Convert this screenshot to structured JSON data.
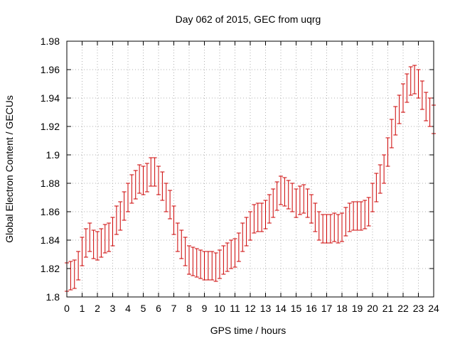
{
  "chart_data": {
    "type": "scatter",
    "title": "Day 062 of 2015, GEC from uqrg",
    "xlabel": "GPS time / hours",
    "ylabel": "Global Electron Content / GECUs",
    "xlim": [
      0,
      24
    ],
    "ylim": [
      1.8,
      1.98
    ],
    "xticks": [
      0,
      1,
      2,
      3,
      4,
      5,
      6,
      7,
      8,
      9,
      10,
      11,
      12,
      13,
      14,
      15,
      16,
      17,
      18,
      19,
      20,
      21,
      22,
      23,
      24
    ],
    "xtick_labels": [
      "0",
      "1",
      "2",
      "3",
      "4",
      "5",
      "6",
      "7",
      "8",
      "9",
      "10",
      "11",
      "12",
      "13",
      "14",
      "15",
      "16",
      "17",
      "18",
      "19",
      "20",
      "21",
      "22",
      "23",
      "24"
    ],
    "yticks": [
      1.8,
      1.82,
      1.84,
      1.86,
      1.88,
      1.9,
      1.92,
      1.94,
      1.96,
      1.98
    ],
    "ytick_labels": [
      "1.8",
      "1.82",
      "1.84",
      "1.86",
      "1.88",
      "1.9",
      "1.92",
      "1.94",
      "1.96",
      "1.98"
    ],
    "grid": true,
    "error": 0.01,
    "color": "#cc0000",
    "series": [
      {
        "x": [
          0,
          0.25,
          0.5,
          0.75,
          1,
          1.25,
          1.5,
          1.75,
          2,
          2.25,
          2.5,
          2.75,
          3,
          3.25,
          3.5,
          3.75,
          4,
          4.25,
          4.5,
          4.75,
          5,
          5.25,
          5.5,
          5.75,
          6,
          6.25,
          6.5,
          6.75,
          7,
          7.25,
          7.5,
          7.75,
          8,
          8.25,
          8.5,
          8.75,
          9,
          9.25,
          9.5,
          9.75,
          10,
          10.25,
          10.5,
          10.75,
          11,
          11.25,
          11.5,
          11.75,
          12,
          12.25,
          12.5,
          12.75,
          13,
          13.25,
          13.5,
          13.75,
          14,
          14.25,
          14.5,
          14.75,
          15,
          15.25,
          15.5,
          15.75,
          16,
          16.25,
          16.5,
          16.75,
          17,
          17.25,
          17.5,
          17.75,
          18,
          18.25,
          18.5,
          18.75,
          19,
          19.25,
          19.5,
          19.75,
          20,
          20.25,
          20.5,
          20.75,
          21,
          21.25,
          21.5,
          21.75,
          22,
          22.25,
          22.5,
          22.75,
          23,
          23.25,
          23.5,
          23.75,
          24
        ],
        "y": [
          1.814,
          1.815,
          1.816,
          1.822,
          1.832,
          1.838,
          1.842,
          1.837,
          1.836,
          1.838,
          1.841,
          1.842,
          1.846,
          1.854,
          1.857,
          1.864,
          1.87,
          1.876,
          1.879,
          1.883,
          1.882,
          1.884,
          1.888,
          1.888,
          1.882,
          1.878,
          1.87,
          1.865,
          1.854,
          1.842,
          1.837,
          1.832,
          1.826,
          1.825,
          1.824,
          1.823,
          1.822,
          1.822,
          1.822,
          1.821,
          1.823,
          1.826,
          1.828,
          1.83,
          1.831,
          1.835,
          1.842,
          1.846,
          1.85,
          1.855,
          1.856,
          1.856,
          1.858,
          1.862,
          1.866,
          1.871,
          1.875,
          1.874,
          1.872,
          1.87,
          1.866,
          1.868,
          1.869,
          1.866,
          1.862,
          1.856,
          1.85,
          1.848,
          1.848,
          1.848,
          1.849,
          1.848,
          1.849,
          1.853,
          1.856,
          1.857,
          1.857,
          1.857,
          1.858,
          1.86,
          1.87,
          1.877,
          1.883,
          1.89,
          1.902,
          1.915,
          1.924,
          1.932,
          1.94,
          1.947,
          1.952,
          1.953,
          1.95,
          1.942,
          1.934,
          1.93,
          1.925
        ]
      }
    ]
  }
}
